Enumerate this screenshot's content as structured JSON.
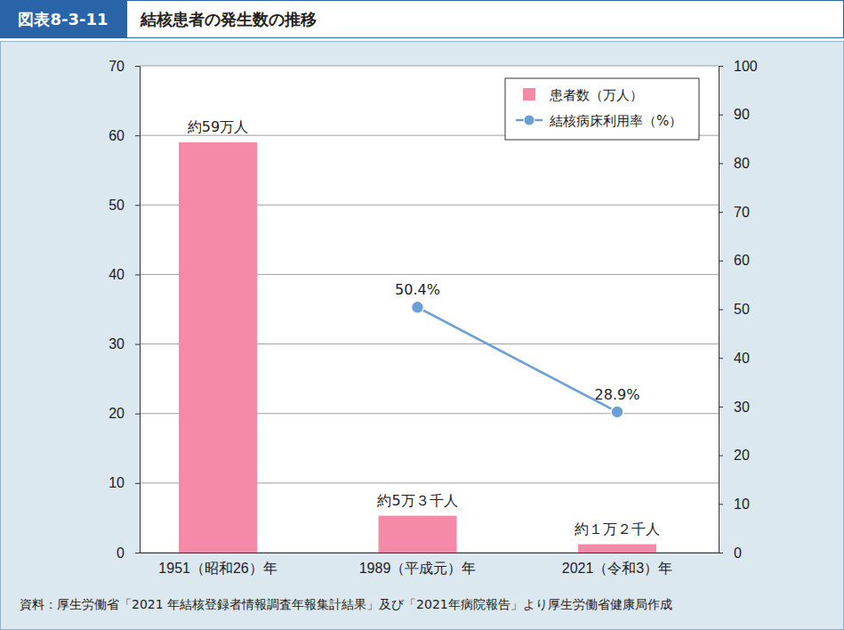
{
  "chart_data": {
    "type": "bar",
    "figure_label": "図表8-3-11",
    "title": "結核患者の発生数の推移",
    "source": "資料：厚生労働省「2021 年結核登録者情報調査年報集計結果」及び「2021年病院報告」より厚生労働省健康局作成",
    "categories": [
      "1951（昭和26）年",
      "1989（平成元）年",
      "2021（令和3）年"
    ],
    "series": [
      {
        "name": "患者数（万人）",
        "type": "bar",
        "color": "#f48aa7",
        "values": [
          59,
          5.3,
          1.2
        ],
        "value_labels": [
          "約59万人",
          "約5万３千人",
          "約１万２千人"
        ]
      },
      {
        "name": "結核病床利用率（%）",
        "type": "line",
        "axis": "y2",
        "color": "#6a9fd8",
        "marker": "circle",
        "values": [
          null,
          50.4,
          28.9
        ],
        "value_labels": [
          null,
          "50.4%",
          "28.9%"
        ]
      }
    ],
    "ylim": [
      0,
      70
    ],
    "yticks": [
      0,
      10,
      20,
      30,
      40,
      50,
      60,
      70
    ],
    "y2lim": [
      0,
      100
    ],
    "y2ticks": [
      0,
      10,
      20,
      30,
      40,
      50,
      60,
      70,
      80,
      90,
      100
    ],
    "grid": true,
    "legend": "top-right",
    "data_labels": true
  }
}
